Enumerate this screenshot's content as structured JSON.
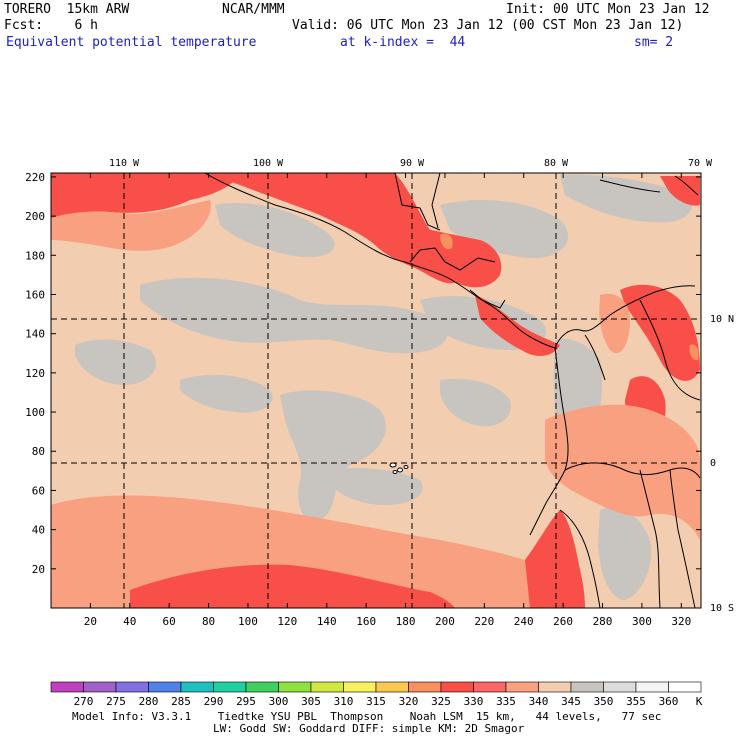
{
  "header": {
    "model": "TORERO  15km ARW",
    "center": "NCAR/MMM",
    "init": "Init: 00 UTC Mon 23 Jan 12",
    "fcst": "Fcst:    6 h",
    "valid": "Valid: 06 UTC Mon 23 Jan 12 (00 CST Mon 23 Jan 12)",
    "field": "Equivalent potential temperature",
    "level": "at k-index =  44",
    "smooth": "sm= 2"
  },
  "map": {
    "x_ticks": [
      "20",
      "40",
      "60",
      "80",
      "100",
      "120",
      "140",
      "160",
      "180",
      "200",
      "220",
      "240",
      "260",
      "280",
      "300",
      "320"
    ],
    "y_ticks": [
      "20",
      "40",
      "60",
      "80",
      "100",
      "120",
      "140",
      "160",
      "180",
      "200",
      "220"
    ],
    "lon_labels": [
      "110 W",
      "100 W",
      "90 W",
      "80 W",
      "70 W"
    ],
    "lat_labels": [
      "10 N",
      "0",
      "10 S"
    ]
  },
  "colorbar": {
    "unit": "K",
    "labels": [
      "270",
      "275",
      "280",
      "285",
      "290",
      "295",
      "300",
      "305",
      "310",
      "315",
      "320",
      "325",
      "330",
      "335",
      "340",
      "345",
      "350",
      "355",
      "360"
    ],
    "colors": [
      "#c040c0",
      "#a060c8",
      "#8070e0",
      "#5080e8",
      "#20c0c0",
      "#20d0a0",
      "#40d060",
      "#90e040",
      "#d0e840",
      "#f8f060",
      "#f8c850",
      "#f89060",
      "#f85048",
      "#f86868",
      "#f8a080",
      "#f2cdb0",
      "#c8c4c0",
      "#dcdcdc",
      "#f4f4f4",
      "#ffffff"
    ]
  },
  "footer": {
    "line1": "Model Info: V3.3.1    Tiedtke YSU PBL  Thompson    Noah LSM  15 km,   44 levels,   77 sec",
    "line2": "LW: Godd SW: Goddard DIFF: simple KM: 2D Smagor"
  }
}
